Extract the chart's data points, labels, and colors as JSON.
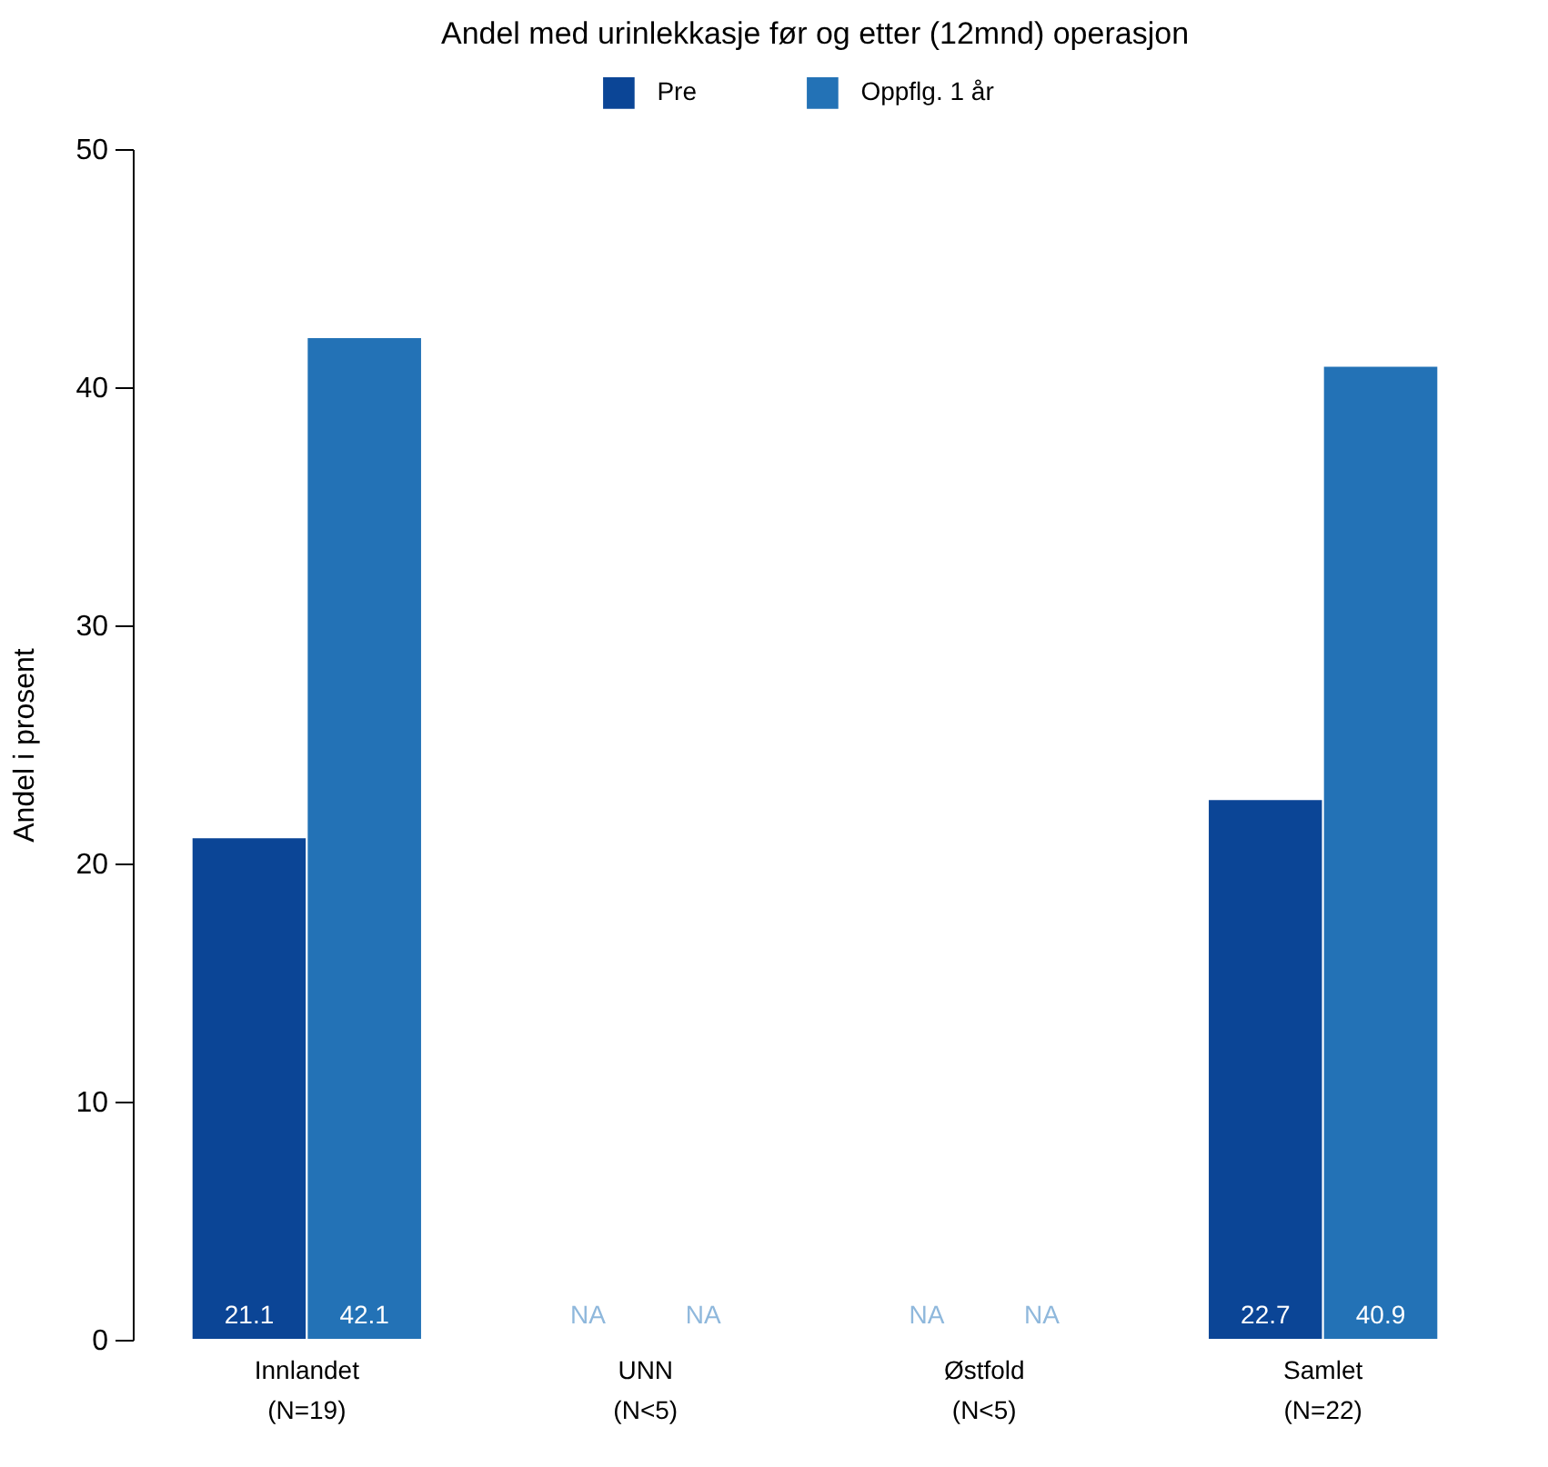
{
  "chart_data": {
    "type": "bar",
    "title": "Andel med urinlekkasje før og etter (12mnd) operasjon",
    "ylabel": "Andel i prosent",
    "categories": [
      "Innlandet\n(N=19)",
      "UNN\n(N<5)",
      "Østfold\n(N<5)",
      "Samlet\n(N=22)"
    ],
    "series": [
      {
        "name": "Pre",
        "color": "#0b4596",
        "values": [
          21.1,
          null,
          null,
          22.7
        ],
        "value_labels": [
          "21.1",
          "NA",
          "NA",
          "22.7"
        ]
      },
      {
        "name": "Oppflg. 1 år",
        "color": "#2372b6",
        "values": [
          42.1,
          null,
          null,
          40.9
        ],
        "value_labels": [
          "42.1",
          "NA",
          "NA",
          "40.9"
        ]
      }
    ],
    "ylim": [
      0,
      50
    ],
    "yticks": [
      0,
      10,
      20,
      30,
      40,
      50
    ],
    "grid": false,
    "legend": "top"
  }
}
